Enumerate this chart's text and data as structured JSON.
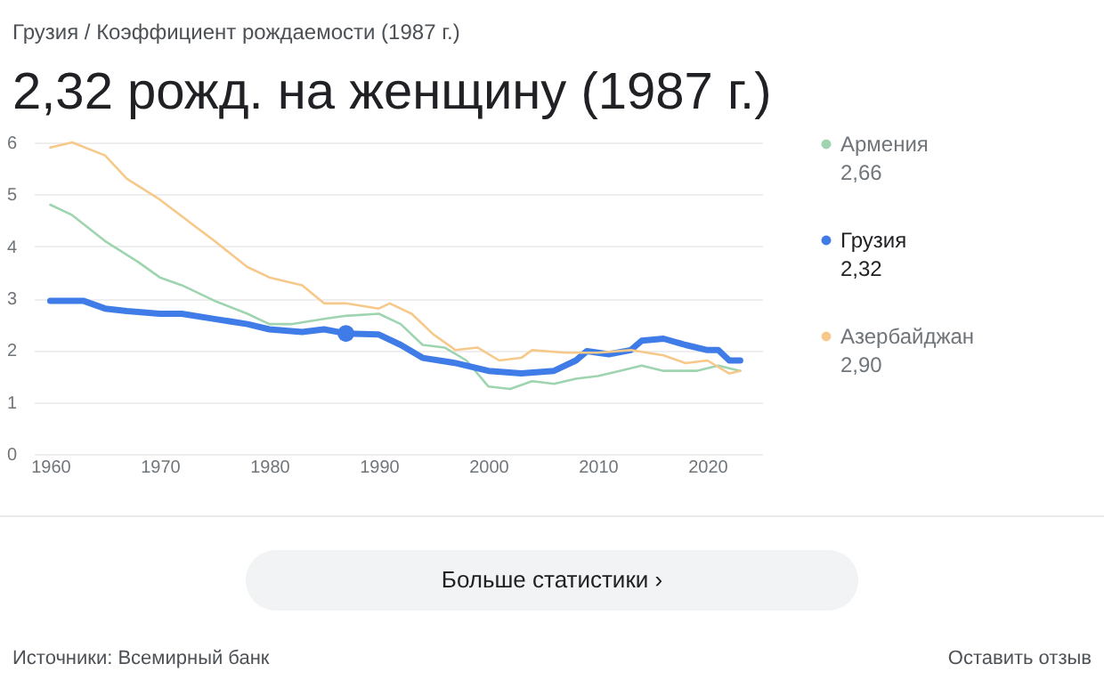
{
  "chart_data": {
    "type": "line",
    "title": "2,32 рожд. на женщину (1987 г.)",
    "subtitle": "Грузия / Коэффициент рождаемости (1987 г.)",
    "xlim": [
      1958.5,
      2025
    ],
    "xticks": [
      1960,
      1970,
      1980,
      1990,
      2000,
      2010,
      2020
    ],
    "ylim": [
      0,
      6
    ],
    "yticks": [
      0,
      1,
      2,
      3,
      4,
      5,
      6
    ],
    "grid": "y",
    "legend": "right",
    "marker": "none",
    "line_style": "solid",
    "series": [
      {
        "name": "Армения",
        "color": "#9fd4b0",
        "x": [
          1960,
          1962,
          1965,
          1968,
          1970,
          1972,
          1975,
          1978,
          1980,
          1982,
          1985,
          1987,
          1990,
          1992,
          1994,
          1996,
          1998,
          2000,
          2002,
          2004,
          2006,
          2008,
          2010,
          2012,
          2014,
          2016,
          2019,
          2021,
          2023
        ],
        "values": [
          4.8,
          4.6,
          4.1,
          3.7,
          3.4,
          3.25,
          2.95,
          2.7,
          2.5,
          2.5,
          2.6,
          2.66,
          2.7,
          2.5,
          2.1,
          2.05,
          1.8,
          1.3,
          1.25,
          1.4,
          1.35,
          1.45,
          1.5,
          1.6,
          1.7,
          1.6,
          1.6,
          1.7,
          1.6
        ]
      },
      {
        "name": "Грузия",
        "color": "#3f7ce8",
        "x": [
          1960,
          1963,
          1965,
          1967,
          1970,
          1972,
          1975,
          1978,
          1980,
          1983,
          1985,
          1987,
          1990,
          1992,
          1994,
          1997,
          2000,
          2003,
          2006,
          2008,
          2009,
          2011,
          2013,
          2014,
          2016,
          2018,
          2020,
          2021,
          2022,
          2023
        ],
        "values": [
          2.95,
          2.95,
          2.8,
          2.75,
          2.7,
          2.7,
          2.6,
          2.5,
          2.4,
          2.35,
          2.4,
          2.32,
          2.3,
          2.1,
          1.85,
          1.75,
          1.6,
          1.55,
          1.6,
          1.8,
          1.98,
          1.92,
          2.0,
          2.18,
          2.22,
          2.1,
          2.0,
          2.0,
          1.8,
          1.8
        ]
      },
      {
        "name": "Азербайджан",
        "color": "#f6c98a",
        "x": [
          1960,
          1962,
          1965,
          1967,
          1970,
          1975,
          1978,
          1980,
          1983,
          1985,
          1987,
          1990,
          1991,
          1993,
          1995,
          1997,
          1999,
          2001,
          2003,
          2004,
          2007,
          2010,
          2013,
          2016,
          2018,
          2020,
          2022,
          2023
        ],
        "values": [
          5.9,
          6.0,
          5.75,
          5.3,
          4.9,
          4.1,
          3.6,
          3.4,
          3.25,
          2.9,
          2.9,
          2.8,
          2.9,
          2.7,
          2.3,
          2.0,
          2.05,
          1.8,
          1.85,
          2.0,
          1.95,
          1.95,
          2.0,
          1.9,
          1.75,
          1.8,
          1.55,
          1.6
        ]
      },
      {
        "type": "scatter",
        "marker": "circle",
        "color": "#3f7ce8",
        "x": [
          1987
        ],
        "values": [
          2.32
        ]
      }
    ],
    "annotations": [
      "2,66",
      "2,32",
      "2,90",
      "Больше статистики ›",
      "Источники: Всемирный банк",
      "Оставить отзыв"
    ]
  }
}
